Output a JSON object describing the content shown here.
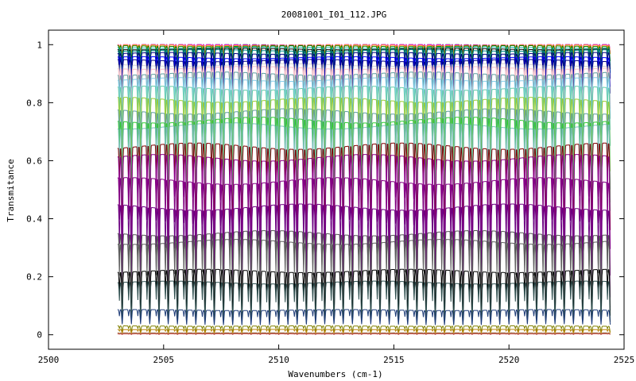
{
  "chart_data": {
    "type": "line",
    "title": "20081001_I01_112.JPG",
    "xlabel": "Wavenumbers (cm-1)",
    "ylabel": "Transmitance",
    "xlim": [
      2500,
      2525
    ],
    "ylim": [
      -0.05,
      1.05
    ],
    "x_ticks": [
      2500,
      2505,
      2510,
      2515,
      2520,
      2525
    ],
    "y_ticks": [
      0,
      0.2,
      0.4,
      0.6,
      0.8,
      1
    ],
    "y_tick_labels": [
      "0",
      "0.2",
      "0.4",
      "0.6",
      "0.8",
      "1"
    ],
    "x_range_data": [
      2503.0,
      2524.4
    ],
    "grid": false,
    "legend": "none",
    "absorption_line_spacing_cm1": 0.4,
    "series": [
      {
        "color": "#000000",
        "baseline": 1.0,
        "depth": 0.03
      },
      {
        "color": "#ff00ff",
        "baseline": 1.0,
        "depth": 0.03
      },
      {
        "color": "#ffa500",
        "baseline": 0.998,
        "depth": 0.03
      },
      {
        "color": "#008000",
        "baseline": 0.995,
        "depth": 0.05
      },
      {
        "color": "#20b2aa",
        "baseline": 0.99,
        "depth": 0.06
      },
      {
        "color": "#000000",
        "baseline": 0.985,
        "depth": 0.07
      },
      {
        "color": "#008b8b",
        "baseline": 0.98,
        "depth": 0.08
      },
      {
        "color": "#000080",
        "baseline": 0.97,
        "depth": 0.09
      },
      {
        "color": "#0000ff",
        "baseline": 0.955,
        "depth": 0.1
      },
      {
        "color": "#000080",
        "baseline": 0.945,
        "depth": 0.11
      },
      {
        "color": "#d3d3d3",
        "baseline": 0.93,
        "depth": 0.13
      },
      {
        "color": "#ffc0cb",
        "baseline": 0.92,
        "depth": 0.14
      },
      {
        "color": "#5f9ea0",
        "baseline": 0.9,
        "depth": 0.16
      },
      {
        "color": "#87ceeb",
        "baseline": 0.88,
        "depth": 0.18
      },
      {
        "color": "#66cdaa",
        "baseline": 0.85,
        "depth": 0.2
      },
      {
        "color": "#9acd32",
        "baseline": 0.81,
        "depth": 0.24
      },
      {
        "color": "#5f9ea0",
        "baseline": 0.77,
        "depth": 0.26
      },
      {
        "color": "#32cd32",
        "baseline": 0.74,
        "depth": 0.28
      },
      {
        "color": "#7fbfbf",
        "baseline": 0.72,
        "depth": 0.3
      },
      {
        "color": "#800000",
        "baseline": 0.65,
        "depth": 0.3
      },
      {
        "color": "#8b008b",
        "baseline": 0.61,
        "depth": 0.32
      },
      {
        "color": "#800080",
        "baseline": 0.53,
        "depth": 0.32
      },
      {
        "color": "#6a0080",
        "baseline": 0.44,
        "depth": 0.3
      },
      {
        "color": "#555555",
        "baseline": 0.35,
        "depth": 0.25
      },
      {
        "color": "#606060",
        "baseline": 0.32,
        "depth": 0.24
      },
      {
        "color": "#000000",
        "baseline": 0.22,
        "depth": 0.16
      },
      {
        "color": "#2f4f4f",
        "baseline": 0.18,
        "depth": 0.14
      },
      {
        "color": "#1e3c78",
        "baseline": 0.085,
        "depth": 0.05
      },
      {
        "color": "#808000",
        "baseline": 0.03,
        "depth": 0.02
      },
      {
        "color": "#b8860b",
        "baseline": 0.018,
        "depth": 0.012
      },
      {
        "color": "#8b4513",
        "baseline": 0.006,
        "depth": 0.005
      },
      {
        "color": "#cd5c5c",
        "baseline": 0.003,
        "depth": 0.002
      }
    ]
  }
}
